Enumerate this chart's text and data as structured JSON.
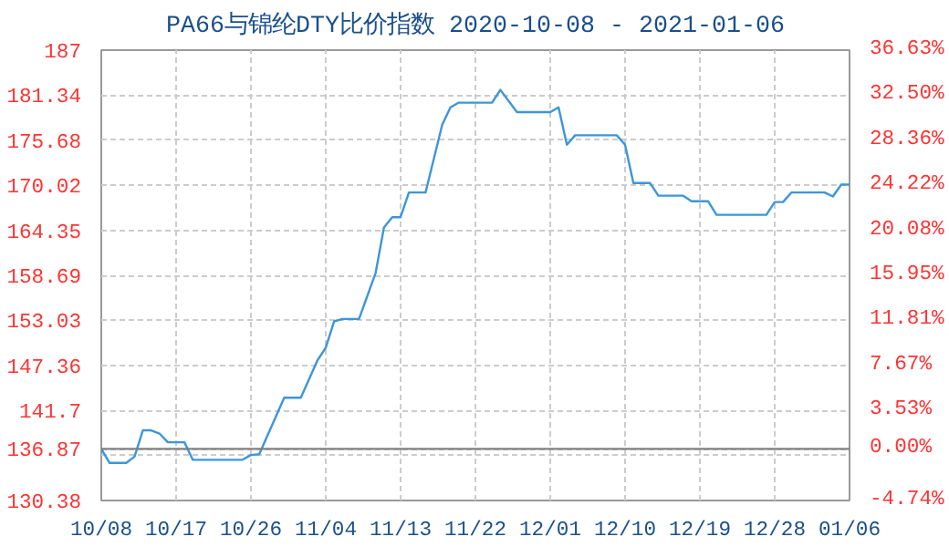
{
  "chart_data": {
    "type": "line",
    "title": "PA66与锦纶DTY比价指数 2020-10-08 - 2021-01-06",
    "x": [
      "2020-10-08",
      "2020-10-09",
      "2020-10-11",
      "2020-10-12",
      "2020-10-13",
      "2020-10-14",
      "2020-10-15",
      "2020-10-16",
      "2020-10-18",
      "2020-10-19",
      "2020-10-25",
      "2020-10-26",
      "2020-10-27",
      "2020-10-30",
      "2020-11-01",
      "2020-11-03",
      "2020-11-04",
      "2020-11-05",
      "2020-11-06",
      "2020-11-08",
      "2020-11-10",
      "2020-11-11",
      "2020-11-12",
      "2020-11-13",
      "2020-11-14",
      "2020-11-16",
      "2020-11-18",
      "2020-11-19",
      "2020-11-20",
      "2020-11-24",
      "2020-11-25",
      "2020-11-27",
      "2020-12-01",
      "2020-12-02",
      "2020-12-03",
      "2020-12-04",
      "2020-12-09",
      "2020-12-10",
      "2020-12-11",
      "2020-12-13",
      "2020-12-14",
      "2020-12-17",
      "2020-12-18",
      "2020-12-20",
      "2020-12-21",
      "2020-12-27",
      "2020-12-28",
      "2020-12-29",
      "2020-12-30",
      "2021-01-03",
      "2021-01-04",
      "2021-01-05",
      "2021-01-06"
    ],
    "series": [
      {
        "color": "#3c96d8",
        "values": [
          136.87,
          135.1,
          135.1,
          135.9,
          139.2,
          139.2,
          138.8,
          137.7,
          137.7,
          135.5,
          135.5,
          136.1,
          136.2,
          143.3,
          143.3,
          148.0,
          149.6,
          152.9,
          153.2,
          153.2,
          159.0,
          164.7,
          166.0,
          166.0,
          169.1,
          169.1,
          177.6,
          179.8,
          180.4,
          180.4,
          182.0,
          179.2,
          179.2,
          179.8,
          175.1,
          176.3,
          176.3,
          175.1,
          170.3,
          170.3,
          168.7,
          168.7,
          168.0,
          168.0,
          166.3,
          166.3,
          167.9,
          167.9,
          169.1,
          169.1,
          168.6,
          170.1,
          170.1
        ]
      }
    ],
    "xlim": [
      "2020-10-08",
      "2021-01-06"
    ],
    "xticks": [
      {
        "value": "2020-10-08",
        "label": "10/08"
      },
      {
        "value": "2020-10-17",
        "label": "10/17"
      },
      {
        "value": "2020-10-26",
        "label": "10/26"
      },
      {
        "value": "2020-11-04",
        "label": "11/04"
      },
      {
        "value": "2020-11-13",
        "label": "11/13"
      },
      {
        "value": "2020-11-22",
        "label": "11/22"
      },
      {
        "value": "2020-12-01",
        "label": "12/01"
      },
      {
        "value": "2020-12-10",
        "label": "12/10"
      },
      {
        "value": "2020-12-19",
        "label": "12/19"
      },
      {
        "value": "2020-12-28",
        "label": "12/28"
      },
      {
        "value": "2021-01-06",
        "label": "01/06"
      }
    ],
    "ylim": [
      130.38,
      187
    ],
    "yticks": [
      130.38,
      {
        "value": 136.04,
        "label": null
      },
      136.87,
      141.7,
      147.36,
      153.03,
      158.69,
      164.35,
      170.02,
      175.68,
      181.34,
      187
    ],
    "y2lim": [
      -4.74,
      36.63
    ],
    "y2ticks": [
      {
        "value": -4.74,
        "label": "-4.74%"
      },
      {
        "value": 0,
        "label": "0.00%"
      },
      {
        "value": 3.53,
        "label": "3.53%"
      },
      {
        "value": 7.67,
        "label": "7.67%"
      },
      {
        "value": 11.81,
        "label": "11.81%"
      },
      {
        "value": 15.95,
        "label": "15.95%"
      },
      {
        "value": 20.08,
        "label": "20.08%"
      },
      {
        "value": 24.22,
        "label": "24.22%"
      },
      {
        "value": 28.36,
        "label": "28.36%"
      },
      {
        "value": 32.5,
        "label": "32.50%"
      },
      {
        "value": 36.63,
        "label": "36.63%"
      }
    ],
    "ref_lines": [
      {
        "axis": "y",
        "value": 136.87,
        "color": "#808080"
      }
    ],
    "grid": true,
    "line_style": "solid",
    "marker": "none"
  }
}
